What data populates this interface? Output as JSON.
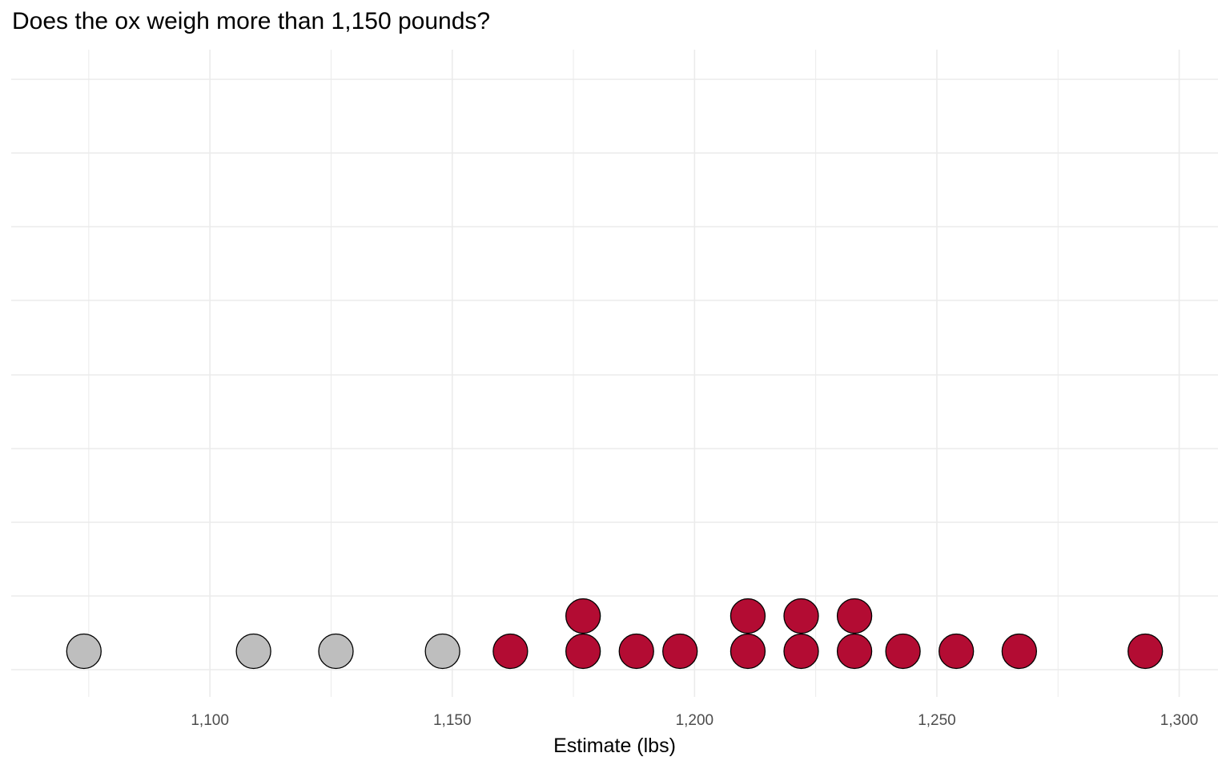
{
  "chart_data": {
    "type": "dotplot",
    "title": "Does the ox weigh more than 1,150 pounds?",
    "xlabel": "Estimate (lbs)",
    "ylabel": "",
    "xlim": [
      1059,
      1308
    ],
    "x_ticks": [
      1100,
      1150,
      1200,
      1250,
      1300
    ],
    "x_tick_labels": [
      "1,100",
      "1,150",
      "1,200",
      "1,250",
      "1,300"
    ],
    "threshold": 1150,
    "grid": true,
    "legend": "none",
    "colors": {
      "above_threshold": "#b30c33",
      "below_threshold": "#bebebe",
      "outline": "#000000",
      "grid": "#ebebeb"
    },
    "points": [
      {
        "x": 1074,
        "stack": 1
      },
      {
        "x": 1109,
        "stack": 1
      },
      {
        "x": 1126,
        "stack": 1
      },
      {
        "x": 1148,
        "stack": 1
      },
      {
        "x": 1162,
        "stack": 1
      },
      {
        "x": 1177,
        "stack": 1
      },
      {
        "x": 1177,
        "stack": 2
      },
      {
        "x": 1188,
        "stack": 1
      },
      {
        "x": 1197,
        "stack": 1
      },
      {
        "x": 1211,
        "stack": 1
      },
      {
        "x": 1211,
        "stack": 2
      },
      {
        "x": 1222,
        "stack": 1
      },
      {
        "x": 1222,
        "stack": 2
      },
      {
        "x": 1233,
        "stack": 1
      },
      {
        "x": 1233,
        "stack": 2
      },
      {
        "x": 1243,
        "stack": 1
      },
      {
        "x": 1254,
        "stack": 1
      },
      {
        "x": 1267,
        "stack": 1
      },
      {
        "x": 1293,
        "stack": 1
      }
    ]
  }
}
